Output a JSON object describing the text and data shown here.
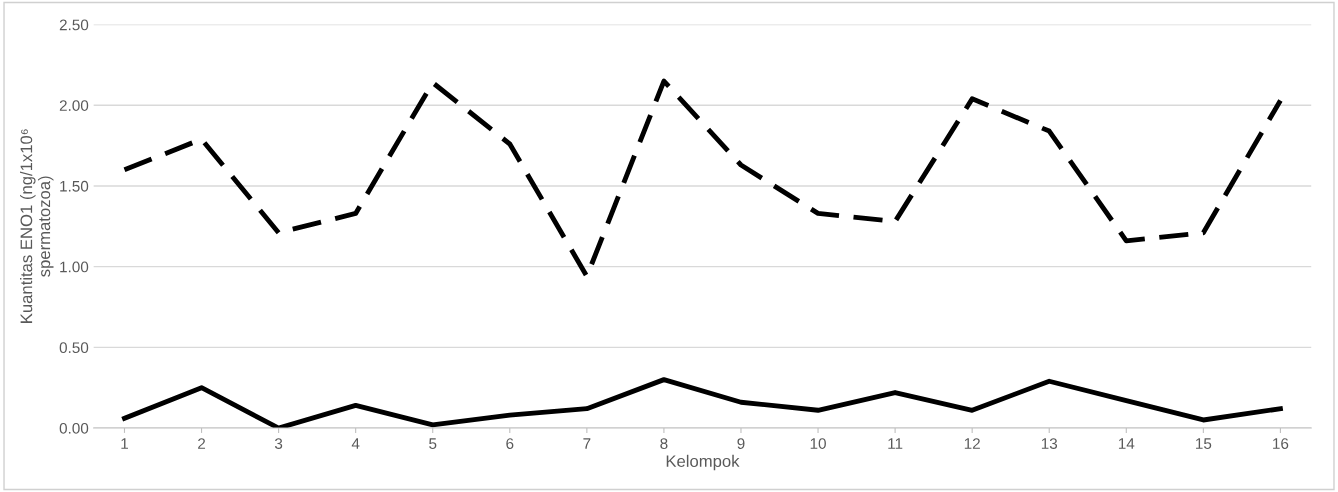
{
  "chart_data": {
    "type": "line",
    "xlabel": "Kelompok",
    "ylabel": "Kuantitas ENO1 (ng/1x10⁶\nspermatozoa)",
    "categories": [
      "1",
      "2",
      "3",
      "4",
      "5",
      "6",
      "7",
      "8",
      "9",
      "10",
      "11",
      "12",
      "13",
      "14",
      "15",
      "16"
    ],
    "series": [
      {
        "color": "#000000",
        "line_style": "dashed",
        "values": [
          1.6,
          1.79,
          1.21,
          1.33,
          2.14,
          1.76,
          0.94,
          2.15,
          1.63,
          1.33,
          1.28,
          2.04,
          1.84,
          1.16,
          1.21,
          2.03
        ]
      },
      {
        "color": "#000000",
        "line_style": "solid",
        "values": [
          0.06,
          0.25,
          0.0,
          0.14,
          0.02,
          0.08,
          0.12,
          0.3,
          0.16,
          0.11,
          0.22,
          0.11,
          0.29,
          0.17,
          0.05,
          0.12
        ]
      }
    ],
    "ylim": [
      0,
      2.5
    ],
    "yticks": [
      {
        "value": 0,
        "label": "0.00"
      },
      {
        "value": 0.5,
        "label": "0.50"
      },
      {
        "value": 1,
        "label": "1.00"
      },
      {
        "value": 1.5,
        "label": "1.50"
      },
      {
        "value": 2,
        "label": "2.00"
      },
      {
        "value": 2.5,
        "label": "2.50"
      }
    ],
    "grid": "y",
    "marker": "none"
  }
}
